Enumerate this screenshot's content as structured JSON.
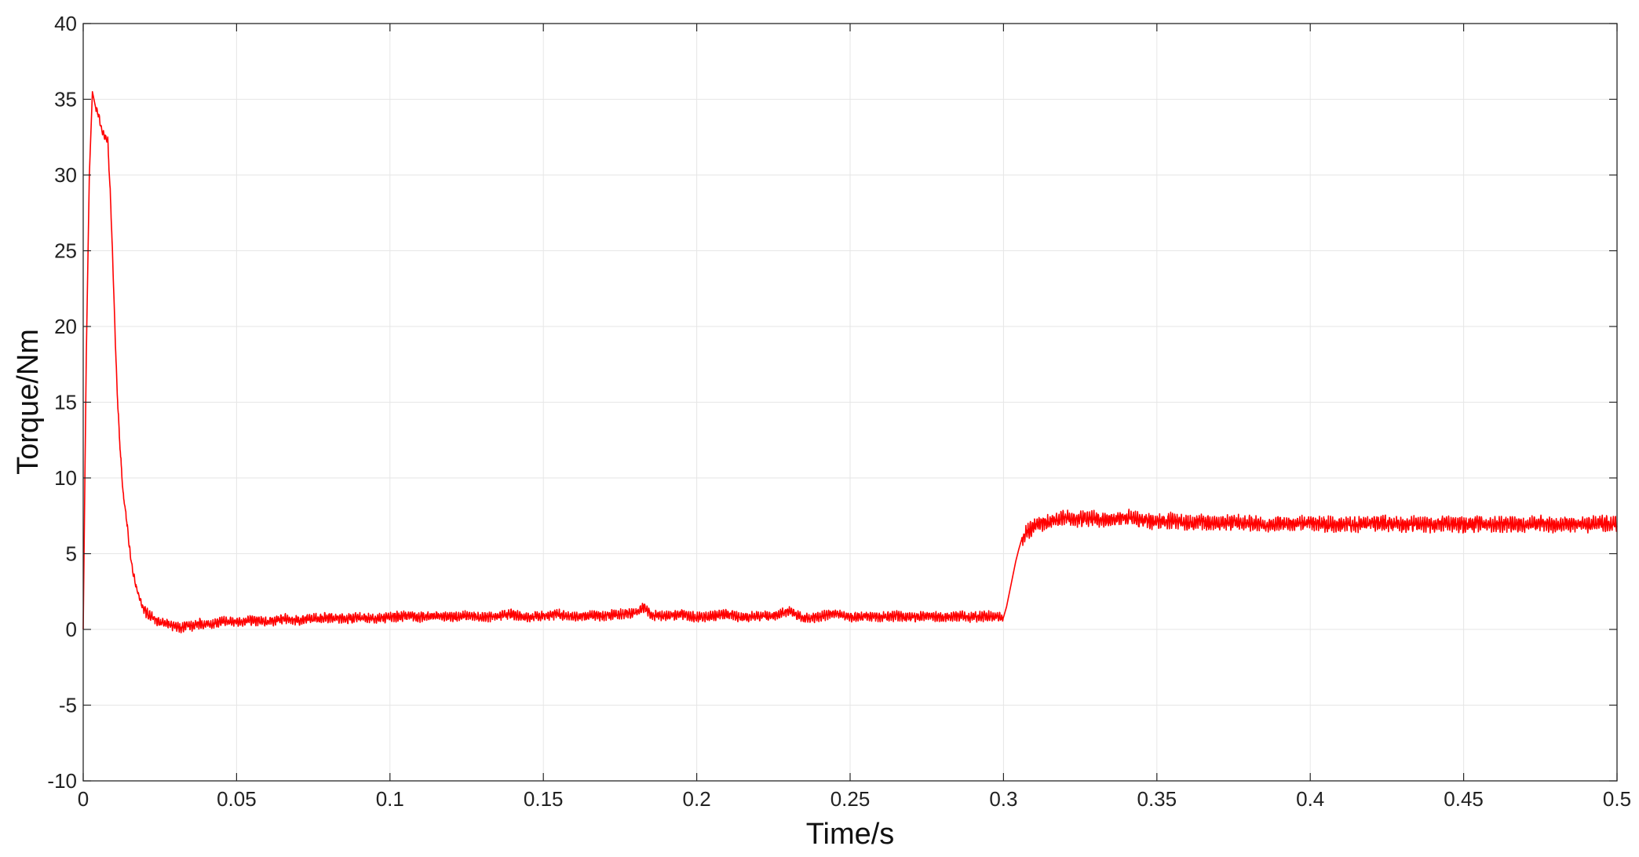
{
  "chart_data": {
    "type": "line",
    "title": "",
    "xlabel": "Time/s",
    "ylabel": "Torque/Nm",
    "xlim": [
      0,
      0.5
    ],
    "ylim": [
      -10,
      40
    ],
    "x_ticks": [
      0,
      0.05,
      0.1,
      0.15,
      0.2,
      0.25,
      0.3,
      0.35,
      0.4,
      0.45,
      0.5
    ],
    "x_tick_labels": [
      "0",
      "0.05",
      "0.1",
      "0.15",
      "0.2",
      "0.25",
      "0.3",
      "0.35",
      "0.4",
      "0.45",
      "0.5"
    ],
    "y_ticks": [
      -10,
      -5,
      0,
      5,
      10,
      15,
      20,
      25,
      30,
      35,
      40
    ],
    "y_tick_labels": [
      "-10",
      "-5",
      "0",
      "5",
      "10",
      "15",
      "20",
      "25",
      "30",
      "35",
      "40"
    ],
    "grid": true,
    "line_color": "#ff0000",
    "series": [
      {
        "x": [
          0,
          0.001,
          0.002,
          0.003,
          0.004,
          0.005,
          0.006,
          0.007,
          0.008,
          0.009,
          0.01,
          0.011,
          0.012,
          0.013,
          0.014,
          0.015,
          0.016,
          0.017,
          0.018,
          0.019,
          0.02,
          0.022,
          0.024,
          0.026,
          0.028,
          0.03,
          0.032,
          0.034,
          0.036,
          0.038,
          0.04,
          0.045,
          0.05,
          0.055,
          0.06,
          0.065,
          0.07,
          0.075,
          0.08,
          0.085,
          0.09,
          0.095,
          0.1,
          0.105,
          0.11,
          0.115,
          0.12,
          0.125,
          0.13,
          0.135,
          0.14,
          0.145,
          0.15,
          0.155,
          0.16,
          0.165,
          0.17,
          0.175,
          0.18,
          0.183,
          0.185,
          0.19,
          0.195,
          0.2,
          0.205,
          0.21,
          0.215,
          0.22,
          0.225,
          0.23,
          0.235,
          0.24,
          0.245,
          0.25,
          0.255,
          0.26,
          0.265,
          0.27,
          0.275,
          0.28,
          0.285,
          0.29,
          0.295,
          0.299,
          0.3,
          0.301,
          0.302,
          0.303,
          0.304,
          0.305,
          0.306,
          0.307,
          0.308,
          0.31,
          0.312,
          0.315,
          0.32,
          0.325,
          0.33,
          0.335,
          0.34,
          0.345,
          0.35,
          0.355,
          0.36,
          0.365,
          0.37,
          0.375,
          0.38,
          0.385,
          0.39,
          0.395,
          0.4,
          0.405,
          0.41,
          0.415,
          0.42,
          0.425,
          0.43,
          0.435,
          0.44,
          0.445,
          0.45,
          0.455,
          0.46,
          0.465,
          0.47,
          0.475,
          0.48,
          0.485,
          0.49,
          0.495,
          0.5
        ],
        "y": [
          0,
          18,
          30,
          35.5,
          34.5,
          34,
          33,
          32.5,
          32.3,
          28,
          22,
          16,
          12,
          9,
          7.5,
          5.5,
          4,
          3,
          2.3,
          1.7,
          1.2,
          0.9,
          0.6,
          0.4,
          0.3,
          0.2,
          0.1,
          0.3,
          0.2,
          0.4,
          0.3,
          0.5,
          0.5,
          0.6,
          0.5,
          0.7,
          0.6,
          0.7,
          0.8,
          0.7,
          0.8,
          0.7,
          0.8,
          0.9,
          0.8,
          0.9,
          0.8,
          0.9,
          0.8,
          0.9,
          1.0,
          0.8,
          0.9,
          1.0,
          0.8,
          0.9,
          0.9,
          1.0,
          1.1,
          1.5,
          0.9,
          0.9,
          1.0,
          0.8,
          0.9,
          1.0,
          0.8,
          0.9,
          0.9,
          1.2,
          0.7,
          0.8,
          1.1,
          0.8,
          0.9,
          0.8,
          0.9,
          0.8,
          0.9,
          0.8,
          0.9,
          0.8,
          0.9,
          0.8,
          0.8,
          1.5,
          2.5,
          3.5,
          4.5,
          5.3,
          6.0,
          6.3,
          6.5,
          6.8,
          7.0,
          7.1,
          7.4,
          7.3,
          7.3,
          7.2,
          7.4,
          7.2,
          7.1,
          7.2,
          7.0,
          7.1,
          7.0,
          7.1,
          7.0,
          6.9,
          7.0,
          6.9,
          7.1,
          6.9,
          7.0,
          6.9,
          7.0,
          7.0,
          6.9,
          7.0,
          6.9,
          7.0,
          6.9,
          7.0,
          6.9,
          7.0,
          6.9,
          7.0,
          6.9,
          7.0,
          6.9,
          7.0,
          7.0
        ]
      }
    ]
  }
}
